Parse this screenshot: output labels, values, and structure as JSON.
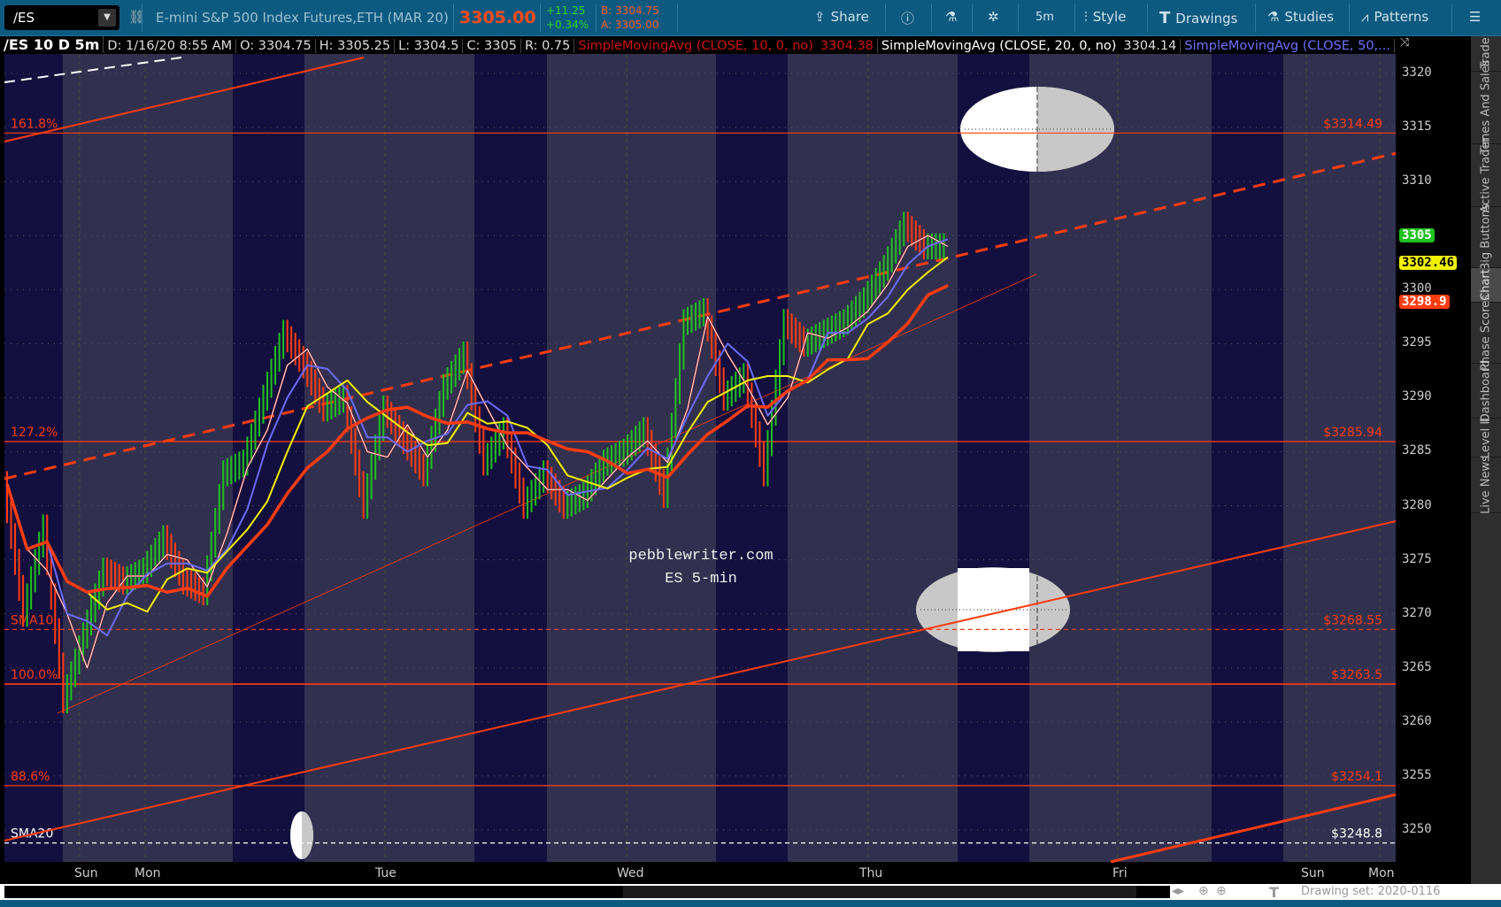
{
  "toolbar": {
    "symbol": "/ES",
    "description": "E-mini S&P 500 Index Futures,ETH (MAR 20)",
    "last": "3305.00",
    "change": "+11.25",
    "change_pct": "+0.34%",
    "bid": "B: 3304.75",
    "ask": "A: 3305.00",
    "share": "Share",
    "timeframe": "5m",
    "style": "Style",
    "drawings": "Drawings",
    "studies": "Studies",
    "patterns": "Patterns"
  },
  "info": {
    "title": "/ES 10 D 5m",
    "date": "D: 1/16/20 8:55 AM",
    "open": "O: 3304.75",
    "high": "H: 3305.25",
    "low": "L: 3304.5",
    "close": "C: 3305",
    "range": "R: 0.75",
    "sma10_label": "SimpleMovingAvg (CLOSE, 10, 0, no)",
    "sma10_value": "3304.38",
    "sma20_label": "SimpleMovingAvg (CLOSE, 20, 0, no)",
    "sma20_value": "3304.14",
    "sma50_label": "SimpleMovingAvg (CLOSE, 50,..."
  },
  "price_axis": {
    "ticks": [
      "3320",
      "3315",
      "3310",
      "3305",
      "3300",
      "3295",
      "3290",
      "3285",
      "3280",
      "3275",
      "3270",
      "3265",
      "3260",
      "3255",
      "3250"
    ],
    "badges": [
      {
        "label": "3305",
        "price": 3305,
        "color": "#1fc21f",
        "text": "#fff"
      },
      {
        "label": "3302.46",
        "price": 3302.46,
        "color": "#f2f200",
        "text": "#000"
      },
      {
        "label": "3298.9",
        "price": 3298.9,
        "color": "#ff3c10",
        "text": "#fff"
      }
    ]
  },
  "time_axis": [
    "Sun",
    "Mon",
    "Tue",
    "Wed",
    "Thu",
    "Fri",
    "Sun",
    "Mon"
  ],
  "sidebar": [
    "Trade",
    "Times And Sales",
    "Active Trader",
    "Big Buttons",
    "Chart",
    "Phase Scores",
    "Dashboard",
    "Level II",
    "Live News"
  ],
  "sidebar_selected": "Chart",
  "chart_data": {
    "type": "line",
    "ylim": [
      3246,
      3322
    ],
    "price_path": [
      3282,
      3270,
      3278,
      3262,
      3268,
      3274,
      3273,
      3274,
      3277,
      3273,
      3272,
      3283,
      3284,
      3290,
      3296,
      3293,
      3289,
      3290,
      3280,
      3289,
      3286,
      3283,
      3291,
      3294,
      3284,
      3287,
      3280,
      3283,
      3280,
      3281,
      3284,
      3285,
      3287,
      3281,
      3297,
      3298,
      3290,
      3292,
      3283,
      3297,
      3295,
      3296,
      3297,
      3299,
      3302,
      3306,
      3304,
      3304
    ],
    "levels": [
      {
        "label": "161.8%",
        "price": 3314.49,
        "value": "$3314.49",
        "style": "solid",
        "color": "#ff3c10"
      },
      {
        "label": "127.2%",
        "price": 3285.94,
        "value": "$3285.94",
        "style": "solid",
        "color": "#ff3c10"
      },
      {
        "label": "SMA10",
        "price": 3268.55,
        "value": "$3268.55",
        "style": "dashed",
        "color": "#ff3c10"
      },
      {
        "label": "100.0%",
        "price": 3263.5,
        "value": "$3263.5",
        "style": "solid",
        "color": "#ff3c10"
      },
      {
        "label": "88.6%",
        "price": 3254.1,
        "value": "$3254.1",
        "style": "solid",
        "color": "#ff3c10"
      },
      {
        "label": "SMA20",
        "price": 3248.8,
        "value": "$3248.8",
        "style": "dashed",
        "color": "#ffffff"
      }
    ],
    "annotation": [
      "pebblewriter.com",
      "ES 5-min"
    ],
    "colors": {
      "up": "#1fc21f",
      "down": "#ff3c10",
      "sma10": "#b01010",
      "sma20": "#ffffff",
      "sma50": "#6b6bff",
      "yellow": "#f2f200",
      "red": "#ff3c10",
      "band_dark": "#13103f",
      "band_light": "#32304f"
    }
  },
  "status": {
    "drawing_set": "Drawing set: 2020-0116"
  }
}
